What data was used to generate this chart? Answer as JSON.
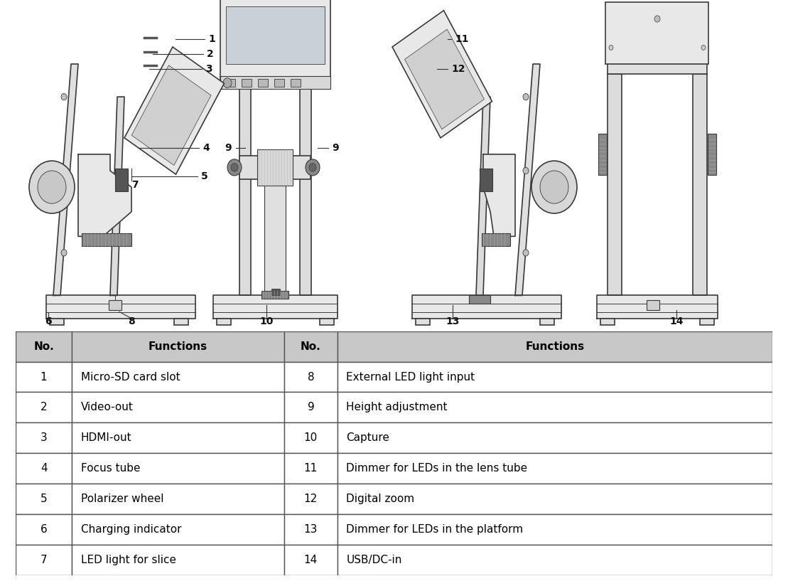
{
  "bg_color": "#ffffff",
  "table_header_bg": "#c8c8c8",
  "table_row_bg": "#ffffff",
  "table_border_color": "#555555",
  "header_row": [
    "No.",
    "Functions",
    "No.",
    "Functions"
  ],
  "rows": [
    [
      "1",
      "Micro-SD card slot",
      "8",
      "External LED light input"
    ],
    [
      "2",
      "Video-out",
      "9",
      "Height adjustment"
    ],
    [
      "3",
      "HDMI-out",
      "10",
      "Capture"
    ],
    [
      "4",
      "Focus tube",
      "11",
      "Dimmer for LEDs in the lens tube"
    ],
    [
      "5",
      "Polarizer wheel",
      "12",
      "Digital zoom"
    ],
    [
      "6",
      "Charging indicator",
      "13",
      "Dimmer for LEDs in the platform"
    ],
    [
      "7",
      "LED light for slice",
      "14",
      "USB/DC-in"
    ]
  ],
  "font_size_table": 11,
  "font_size_header": 11,
  "font_size_label": 10
}
